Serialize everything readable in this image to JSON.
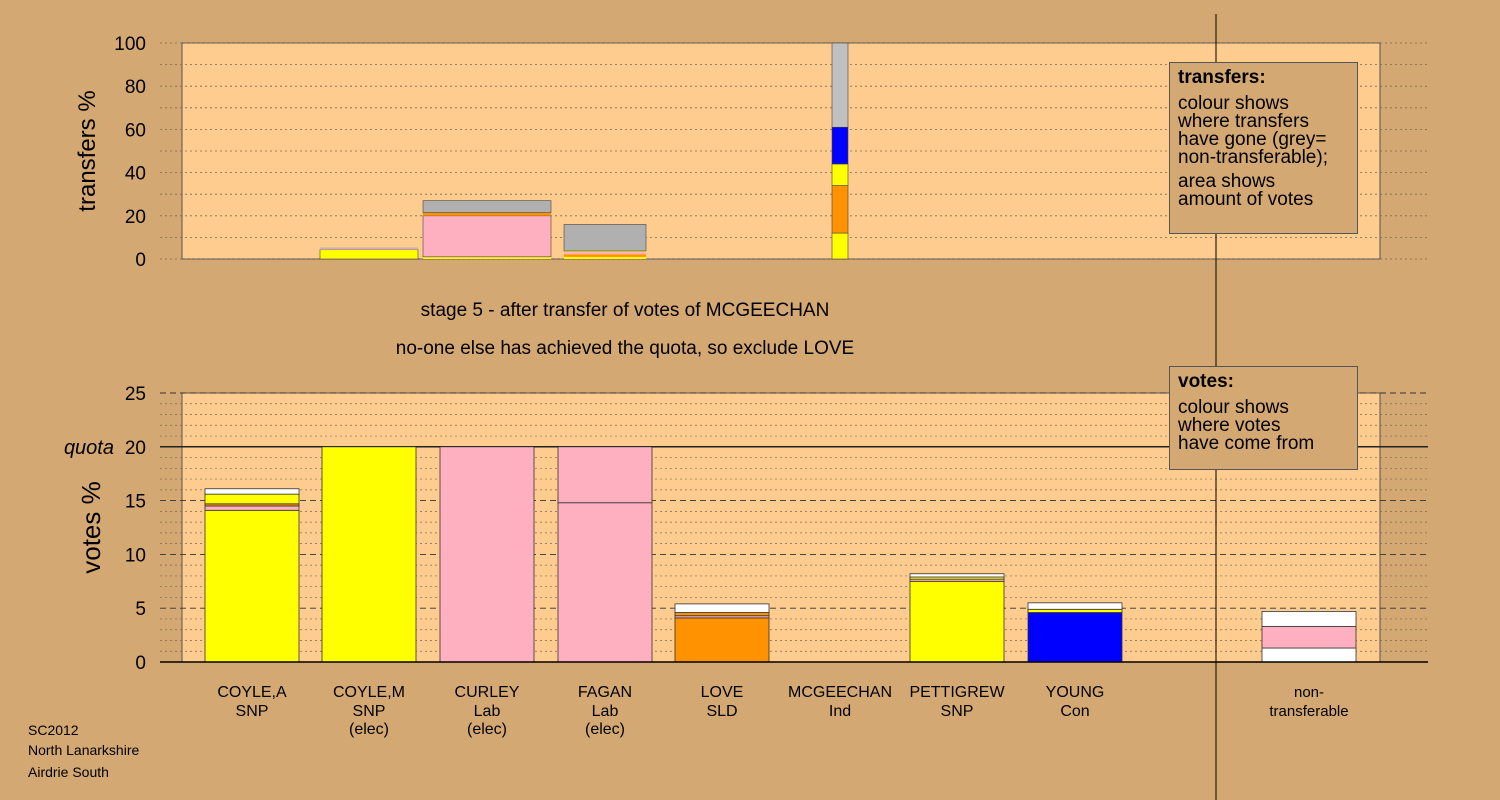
{
  "stage_line": "stage 5 - after transfer of votes of MCGEECHAN",
  "action_line": "no-one else has achieved the quota, so exclude LOVE",
  "caption": [
    "SC2012",
    "North Lanarkshire",
    "Airdrie South"
  ],
  "legend_transfers": {
    "title": "transfers:",
    "lines1": [
      "colour shows",
      "where transfers",
      "have gone (grey=",
      "non-transferable);"
    ],
    "lines2": [
      "area shows",
      "amount of votes"
    ]
  },
  "legend_votes": {
    "title": "votes:",
    "lines": [
      "colour shows",
      "where votes",
      "have come from"
    ]
  },
  "colors": {
    "background": "#d4a873",
    "plot": "#ffcc8f",
    "SNP": "#ffff00",
    "Lab": "#ffb0c0",
    "SLD": "#ff9200",
    "Con": "#0000ff",
    "Ind": "#c0c0c0",
    "non_transferable": "#b0b0b0",
    "white": "#ffffff"
  },
  "chart_data": [
    {
      "type": "bar",
      "title": "transfers",
      "ylabel": "transfers %",
      "ylim": [
        0,
        100
      ],
      "yticks": [
        0,
        20,
        40,
        60,
        80,
        100
      ],
      "bars": [
        {
          "candidate": "COYLE,M",
          "width_share": 0.2,
          "segments": [
            {
              "value": 4.3,
              "color": "SNP"
            },
            {
              "value": 0.5,
              "color": "Lab"
            },
            {
              "value": 0.5,
              "color": "non_transferable"
            }
          ]
        },
        {
          "candidate": "CURLEY",
          "width_share": 0.2,
          "segments": [
            {
              "value": 1.0,
              "color": "SNP"
            },
            {
              "value": 19.0,
              "color": "Lab"
            },
            {
              "value": 1.5,
              "color": "SLD"
            },
            {
              "value": 5.5,
              "color": "non_transferable"
            }
          ]
        },
        {
          "candidate": "FAGAN",
          "width_share": 0.2,
          "segments": [
            {
              "value": 1.0,
              "color": "SNP"
            },
            {
              "value": 1.2,
              "color": "SLD"
            },
            {
              "value": 1.0,
              "color": "Lab"
            },
            {
              "value": 0.5,
              "color": "SNP"
            },
            {
              "value": 12.3,
              "color": "non_transferable"
            }
          ]
        },
        {
          "candidate": "MCGEECHAN",
          "width_share": 0.05,
          "segments": [
            {
              "value": 12.0,
              "color": "SNP"
            },
            {
              "value": 22.0,
              "color": "SLD"
            },
            {
              "value": 10.0,
              "color": "SNP"
            },
            {
              "value": 17.0,
              "color": "Con"
            },
            {
              "value": 39.0,
              "color": "Ind"
            }
          ]
        }
      ]
    },
    {
      "type": "bar",
      "title": "votes",
      "ylabel": "votes %",
      "ylim": [
        0,
        25
      ],
      "yticks": [
        0,
        5,
        10,
        15,
        20,
        25
      ],
      "quota": 20,
      "quota_label": "quota",
      "categories": [
        {
          "name": "COYLE,A",
          "party": "SNP",
          "elected": ""
        },
        {
          "name": "COYLE,M",
          "party": "SNP",
          "elected": "(elec)"
        },
        {
          "name": "CURLEY",
          "party": "Lab",
          "elected": "(elec)"
        },
        {
          "name": "FAGAN",
          "party": "Lab",
          "elected": "(elec)"
        },
        {
          "name": "LOVE",
          "party": "SLD",
          "elected": ""
        },
        {
          "name": "MCGEECHAN",
          "party": "Ind",
          "elected": ""
        },
        {
          "name": "PETTIGREW",
          "party": "SNP",
          "elected": ""
        },
        {
          "name": "YOUNG",
          "party": "Con",
          "elected": ""
        },
        {
          "name": "",
          "party": "",
          "elected": ""
        },
        {
          "name": "non-",
          "party": "transferable",
          "elected": ""
        }
      ],
      "stacks": [
        [
          {
            "value": 14.1,
            "color": "SNP"
          },
          {
            "value": 0.4,
            "color": "Lab"
          },
          {
            "value": 0.2,
            "color": "SLD"
          },
          {
            "value": 0.9,
            "color": "SNP"
          },
          {
            "value": 0.5,
            "color": "white"
          }
        ],
        [
          {
            "value": 20.0,
            "color": "SNP"
          }
        ],
        [
          {
            "value": 20.0,
            "color": "Lab"
          }
        ],
        [
          {
            "value": 14.8,
            "color": "Lab"
          },
          {
            "value": 5.2,
            "color": "Lab"
          }
        ],
        [
          {
            "value": 4.1,
            "color": "SLD"
          },
          {
            "value": 0.2,
            "color": "Lab"
          },
          {
            "value": 0.3,
            "color": "SLD"
          },
          {
            "value": 0.8,
            "color": "white"
          }
        ],
        [
          {
            "value": 0.0,
            "color": "Ind"
          }
        ],
        [
          {
            "value": 7.5,
            "color": "SNP"
          },
          {
            "value": 0.2,
            "color": "Lab"
          },
          {
            "value": 0.2,
            "color": "SNP"
          },
          {
            "value": 0.3,
            "color": "white"
          }
        ],
        [
          {
            "value": 4.6,
            "color": "Con"
          },
          {
            "value": 0.3,
            "color": "SNP"
          },
          {
            "value": 0.6,
            "color": "white"
          }
        ],
        [],
        [
          {
            "value": 1.3,
            "color": "white"
          },
          {
            "value": 2.0,
            "color": "Lab"
          },
          {
            "value": 1.4,
            "color": "white"
          }
        ]
      ]
    }
  ]
}
